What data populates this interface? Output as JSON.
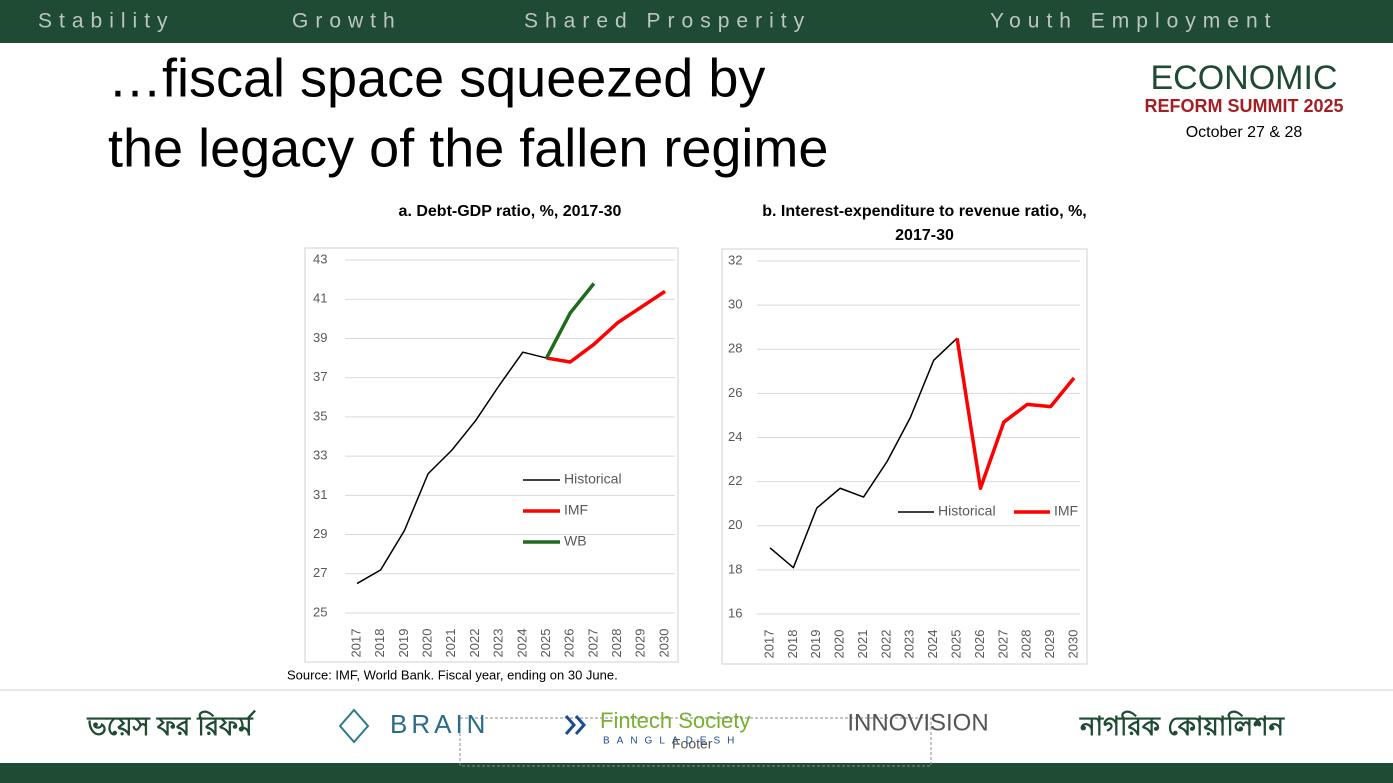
{
  "header": {
    "items": [
      "Stability",
      "Growth",
      "Shared Prosperity",
      "Youth Employment"
    ]
  },
  "slide": {
    "title_lines": [
      "…fiscal space squeezed by",
      "the legacy of the fallen regime"
    ],
    "source": "Source: IMF, World Bank. Fiscal year, ending on 30 June."
  },
  "logo": {
    "line1": "ECONOMIC",
    "line2": "REFORM SUMMIT 2025",
    "date": "October 27 & 28"
  },
  "footer": {
    "placeholder": "Footer",
    "logos": [
      "ভয়েস ফর রিফর্ম",
      "BRAIN",
      "Fintech Society",
      "BANGLADESH",
      "INNOVISION",
      "নাগরিক কোয়ালিশন"
    ]
  },
  "chart_data": [
    {
      "type": "line",
      "title": "a.   Debt-GDP ratio, %, 2017-30",
      "categories": [
        "2017",
        "2018",
        "2019",
        "2020",
        "2021",
        "2022",
        "2023",
        "2024",
        "2025",
        "2026",
        "2027",
        "2028",
        "2029",
        "2030"
      ],
      "series": [
        {
          "name": "Historical",
          "color": "#000000",
          "values": [
            26.5,
            27.2,
            29.2,
            32.1,
            33.3,
            34.8,
            36.6,
            38.3,
            38.0,
            null,
            null,
            null,
            null,
            null
          ]
        },
        {
          "name": "IMF",
          "color": "#ff0000",
          "values": [
            null,
            null,
            null,
            null,
            null,
            null,
            null,
            null,
            38.0,
            37.8,
            38.7,
            39.8,
            40.6,
            41.4
          ]
        },
        {
          "name": "WB",
          "color": "#1e6b1e",
          "values": [
            null,
            null,
            null,
            null,
            null,
            null,
            null,
            null,
            38.0,
            40.3,
            41.8,
            null,
            null,
            null
          ]
        }
      ],
      "ylim": [
        25,
        43
      ],
      "yticks": [
        25,
        27,
        29,
        31,
        33,
        35,
        37,
        39,
        41,
        43
      ],
      "grid": true,
      "legend": "lower right"
    },
    {
      "type": "line",
      "title": "b.   Interest-expenditure to revenue ratio, %, 2017-30",
      "categories": [
        "2017",
        "2018",
        "2019",
        "2020",
        "2021",
        "2022",
        "2023",
        "2024",
        "2025",
        "2026",
        "2027",
        "2028",
        "2029",
        "2030"
      ],
      "series": [
        {
          "name": "Historical",
          "color": "#000000",
          "values": [
            19.0,
            18.1,
            20.8,
            21.7,
            21.3,
            22.9,
            24.9,
            27.5,
            28.5,
            null,
            null,
            null,
            null,
            null
          ]
        },
        {
          "name": "IMF",
          "color": "#ff0000",
          "values": [
            null,
            null,
            null,
            null,
            null,
            null,
            null,
            null,
            28.5,
            21.7,
            24.7,
            25.5,
            25.4,
            26.7
          ]
        }
      ],
      "ylim": [
        16,
        32
      ],
      "yticks": [
        16,
        18,
        20,
        22,
        24,
        26,
        28,
        30,
        32
      ],
      "grid": true,
      "legend": "lower right"
    }
  ]
}
